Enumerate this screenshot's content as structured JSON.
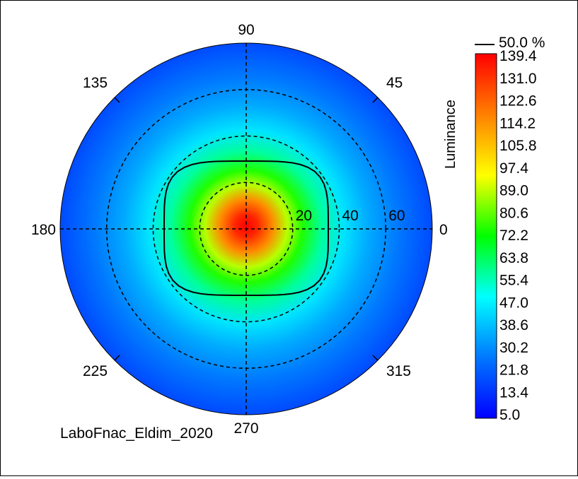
{
  "chart_data": {
    "type": "heatmap",
    "projection": "polar",
    "title": "",
    "footer_label": "LaboFnac_Eldim_2020",
    "angle_ticks": [
      "0",
      "45",
      "90",
      "135",
      "180",
      "225",
      "270",
      "315"
    ],
    "radial_ticks": [
      "20",
      "40",
      "60"
    ],
    "radial_range": [
      0,
      80
    ],
    "grid": true,
    "colorbar": {
      "label": "Luminance",
      "min": 5.0,
      "max": 139.4,
      "ticks": [
        "139.4",
        "131.0",
        "122.6",
        "114.2",
        "105.8",
        "97.4",
        "89.0",
        "80.6",
        "72.2",
        "63.8",
        "55.4",
        "47.0",
        "38.6",
        "30.2",
        "21.8",
        "13.4",
        "5.0"
      ],
      "colors": [
        "#0000ff",
        "#0078ff",
        "#00ffff",
        "#00ff00",
        "#ffff00",
        "#ff8000",
        "#ff0000"
      ]
    },
    "contour": {
      "label": "50.0 %",
      "value": 72.2
    },
    "peak_value": 139.4,
    "peak_location": {
      "theta_deg": 90,
      "r": 0
    }
  },
  "colors": {
    "grid": "#000000",
    "contour": "#000000"
  }
}
